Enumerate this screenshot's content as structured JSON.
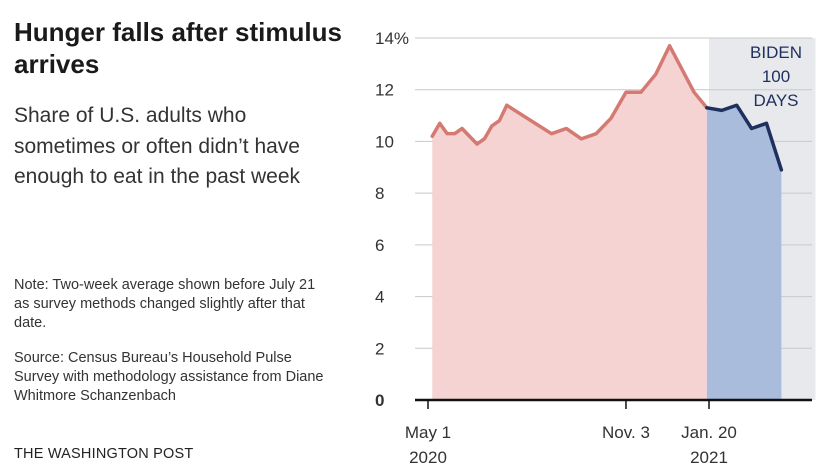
{
  "header": {
    "title": "Hunger falls after stimulus arrives",
    "subtitle": "Share of U.S. adults who sometimes or often didn’t have enough to eat in the past week",
    "note": "Note: Two-week average shown before July 21 as survey methods changed slightly after that date.",
    "source": "Source: Census Bureau’s Household Pulse Survey with methodology assistance from Diane Whitmore Schanzenbach",
    "credit": "THE WASHINGTON POST"
  },
  "colors": {
    "pre_fill": "#f5d3d3",
    "pre_line": "#d47a72",
    "post_fill": "#a9bcdc",
    "post_line": "#1f2f5e",
    "shade": "#e8e9ec"
  },
  "chart_data": {
    "type": "area",
    "y_unit": "%",
    "ylim": [
      0,
      14
    ],
    "y_ticks": [
      0,
      2,
      4,
      6,
      8,
      10,
      12,
      14
    ],
    "y_tick_labels": [
      "0",
      "2",
      "4",
      "6",
      "8",
      "10",
      "12",
      "14%"
    ],
    "x_ticks": [
      {
        "date": "2020-05-01",
        "label": [
          "May 1",
          "2020"
        ]
      },
      {
        "date": "2020-11-03",
        "label": [
          "Nov. 3",
          ""
        ]
      },
      {
        "date": "2021-01-20",
        "label": [
          "Jan. 20",
          "2021"
        ]
      }
    ],
    "grid": true,
    "shaded_period": {
      "start": "2021-01-20",
      "end": "2021-04-30",
      "label": [
        "BIDEN",
        "100",
        "DAYS"
      ]
    },
    "series": [
      {
        "period": "before",
        "points": [
          {
            "x": "2020-05-05",
            "y": 10.2
          },
          {
            "x": "2020-05-12",
            "y": 10.7
          },
          {
            "x": "2020-05-19",
            "y": 10.3
          },
          {
            "x": "2020-05-26",
            "y": 10.3
          },
          {
            "x": "2020-06-02",
            "y": 10.5
          },
          {
            "x": "2020-06-09",
            "y": 10.2
          },
          {
            "x": "2020-06-16",
            "y": 9.9
          },
          {
            "x": "2020-06-23",
            "y": 10.1
          },
          {
            "x": "2020-06-30",
            "y": 10.6
          },
          {
            "x": "2020-07-07",
            "y": 10.8
          },
          {
            "x": "2020-07-14",
            "y": 11.4
          },
          {
            "x": "2020-08-25",
            "y": 10.3
          },
          {
            "x": "2020-09-08",
            "y": 10.5
          },
          {
            "x": "2020-09-22",
            "y": 10.1
          },
          {
            "x": "2020-10-06",
            "y": 10.3
          },
          {
            "x": "2020-10-20",
            "y": 10.9
          },
          {
            "x": "2020-11-03",
            "y": 11.9
          },
          {
            "x": "2020-11-17",
            "y": 11.9
          },
          {
            "x": "2020-12-01",
            "y": 12.6
          },
          {
            "x": "2020-12-14",
            "y": 13.7
          },
          {
            "x": "2021-01-06",
            "y": 11.9
          },
          {
            "x": "2021-01-18",
            "y": 11.3
          }
        ]
      },
      {
        "period": "after",
        "points": [
          {
            "x": "2021-01-18",
            "y": 11.3
          },
          {
            "x": "2021-02-01",
            "y": 11.2
          },
          {
            "x": "2021-02-15",
            "y": 11.4
          },
          {
            "x": "2021-03-01",
            "y": 10.5
          },
          {
            "x": "2021-03-15",
            "y": 10.7
          },
          {
            "x": "2021-03-29",
            "y": 8.9
          }
        ]
      }
    ]
  }
}
